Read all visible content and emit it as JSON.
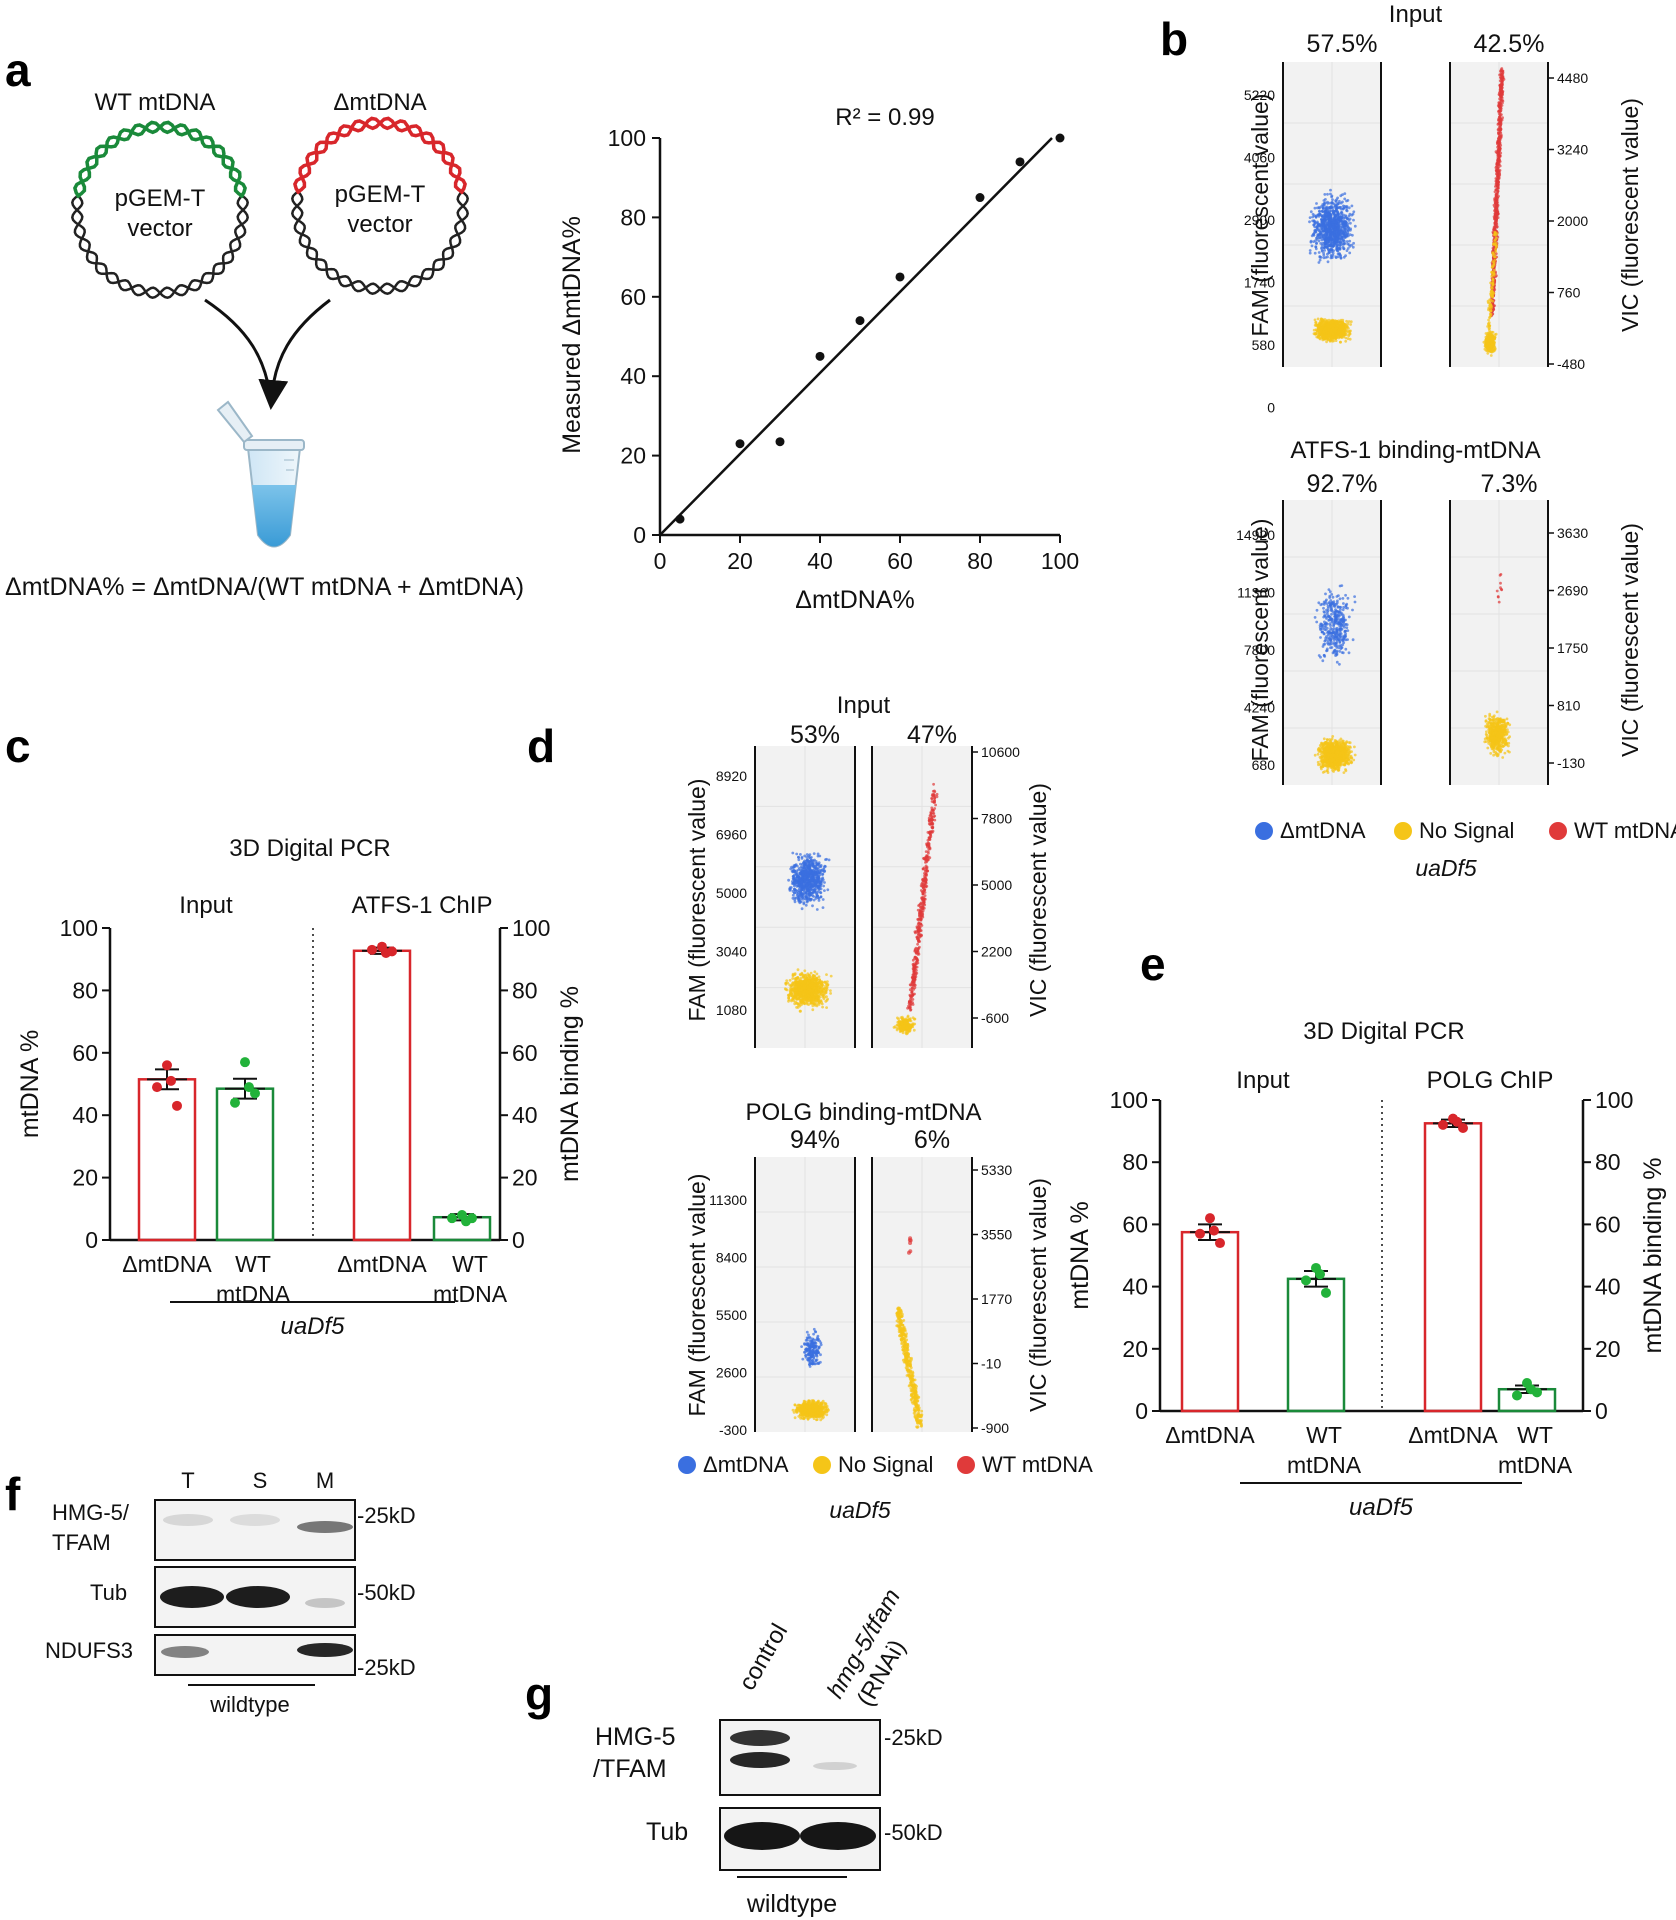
{
  "panel_labels": {
    "a": "a",
    "b": "b",
    "c": "c",
    "d": "d",
    "e": "e",
    "f": "f",
    "g": "g"
  },
  "colors": {
    "mut": "#d8262b",
    "wt": "#1a8a3a",
    "blue": "#3a6fe0",
    "yellow": "#f5c518",
    "red": "#e03a3a",
    "grey": "#f2f2f2"
  },
  "a": {
    "wt_label": "WT mtDNA",
    "mut_label": "ΔmtDNA",
    "plasmid_line1": "pGEM-T",
    "plasmid_line2": "vector",
    "formula": "ΔmtDNA% = ΔmtDNA/(WT mtDNA + ΔmtDNA)"
  },
  "chart_data": [
    {
      "id": "a_scatter",
      "type": "scatter",
      "title": "R² = 0.99",
      "xlabel": "ΔmtDNA%",
      "ylabel": "Measured ΔmtDNA%",
      "xlim": [
        0,
        100
      ],
      "ylim": [
        0,
        100
      ],
      "xticks": [
        "0",
        "20",
        "40",
        "60",
        "80",
        "100"
      ],
      "yticks": [
        "0",
        "20",
        "40",
        "60",
        "80",
        "100"
      ],
      "points": [
        {
          "x": 5,
          "y": 4
        },
        {
          "x": 20,
          "y": 23
        },
        {
          "x": 30,
          "y": 23.5
        },
        {
          "x": 40,
          "y": 45
        },
        {
          "x": 50,
          "y": 54
        },
        {
          "x": 60,
          "y": 65
        },
        {
          "x": 80,
          "y": 85
        },
        {
          "x": 90,
          "y": 94
        },
        {
          "x": 100,
          "y": 100
        }
      ],
      "fit": {
        "x0": 0,
        "y0": 0,
        "x1": 98,
        "y1": 100
      }
    },
    {
      "id": "c_bars",
      "type": "bar",
      "title": "3D Digital PCR",
      "groups": [
        "Input",
        "ATFS-1 ChIP"
      ],
      "categories": [
        "ΔmtDNA",
        "WT\nmtDNA",
        "ΔmtDNA",
        "WT\nmtDNA"
      ],
      "values": [
        51.5,
        48.5,
        92.7,
        7.3
      ],
      "errors": [
        3.2,
        3.2,
        1.0,
        1.0
      ],
      "dots": [
        [
          56,
          51,
          49,
          43
        ],
        [
          57,
          49,
          44,
          47
        ],
        [
          94,
          92,
          93,
          92.5
        ],
        [
          8,
          6,
          7,
          7
        ]
      ],
      "ylabel_left": "mtDNA  %",
      "ylabel_right": "mtDNA binding %",
      "ylim": [
        0,
        100
      ],
      "yticks": [
        "0",
        "20",
        "40",
        "60",
        "80",
        "100"
      ],
      "strain": "uaDf5"
    },
    {
      "id": "e_bars",
      "type": "bar",
      "title": "3D Digital PCR",
      "groups": [
        "Input",
        "POLG ChIP"
      ],
      "categories": [
        "ΔmtDNA",
        "WT\nmtDNA",
        "ΔmtDNA",
        "WT\nmtDNA"
      ],
      "values": [
        57.5,
        42.5,
        92.5,
        7.0
      ],
      "errors": [
        2.5,
        2.5,
        1.2,
        1.2
      ],
      "dots": [
        [
          62,
          58,
          57,
          54
        ],
        [
          46,
          44,
          42,
          38
        ],
        [
          94,
          93,
          92,
          91
        ],
        [
          9,
          7,
          5,
          6
        ]
      ],
      "ylabel_left": "mtDNA  %",
      "ylabel_right": "mtDNA binding %",
      "ylim": [
        0,
        100
      ],
      "yticks": [
        "0",
        "20",
        "40",
        "60",
        "80",
        "100"
      ],
      "strain": "uaDf5"
    }
  ],
  "b": {
    "top": {
      "title": "Input",
      "pct_mut": "57.5%",
      "pct_wt": "42.5%",
      "left_ticks": [
        "5220",
        "4060",
        "2900",
        "1740",
        "580",
        "0"
      ],
      "right_ticks": [
        "4480",
        "3240",
        "2000",
        "760",
        "-480"
      ]
    },
    "bottom": {
      "title": "ATFS-1 binding-mtDNA",
      "pct_mut": "92.7%",
      "pct_wt": "7.3%",
      "left_ticks": [
        "14920",
        "11360",
        "7800",
        "4240",
        "680"
      ],
      "right_ticks": [
        "3630",
        "2690",
        "1750",
        "810",
        "-130"
      ]
    },
    "fam_label": "FAM (fluorescent value)",
    "vic_label": "VIC (fluorescent value)",
    "legend": [
      "ΔmtDNA",
      "No Signal",
      "WT mtDNA"
    ],
    "strain": "uaDf5"
  },
  "d": {
    "top": {
      "title": "Input",
      "pct_mut": "53%",
      "pct_wt": "47%",
      "left_ticks": [
        "8920",
        "6960",
        "5000",
        "3040",
        "1080"
      ],
      "right_ticks": [
        "10600",
        "7800",
        "5000",
        "2200",
        "-600"
      ]
    },
    "bottom": {
      "title": "POLG binding-mtDNA",
      "pct_mut": "94%",
      "pct_wt": "6%",
      "left_ticks": [
        "11300",
        "8400",
        "5500",
        "2600",
        "-300"
      ],
      "right_ticks": [
        "5330",
        "3550",
        "1770",
        "-10",
        "-900"
      ]
    },
    "fam_label": "FAM (fluorescent value)",
    "vic_label": "VIC (fluorescent value)",
    "legend": [
      "ΔmtDNA",
      "No Signal",
      "WT mtDNA"
    ],
    "strain": "uaDf5"
  },
  "f": {
    "lanes": [
      "T",
      "S",
      "M"
    ],
    "rows": [
      "HMG-5/",
      "TFAM",
      "Tub",
      "NDUFS3"
    ],
    "markers": [
      "-25kD",
      "-50kD",
      "-25kD"
    ],
    "strain": "wildtype"
  },
  "g": {
    "lane1": "control",
    "lane2a": "hmg-5/tfam",
    "lane2b": "(RNAi)",
    "row1a": "HMG-5",
    "row1b": "/TFAM",
    "row2": "Tub",
    "markers": [
      "-25kD",
      "-50kD"
    ],
    "strain": "wildtype"
  }
}
